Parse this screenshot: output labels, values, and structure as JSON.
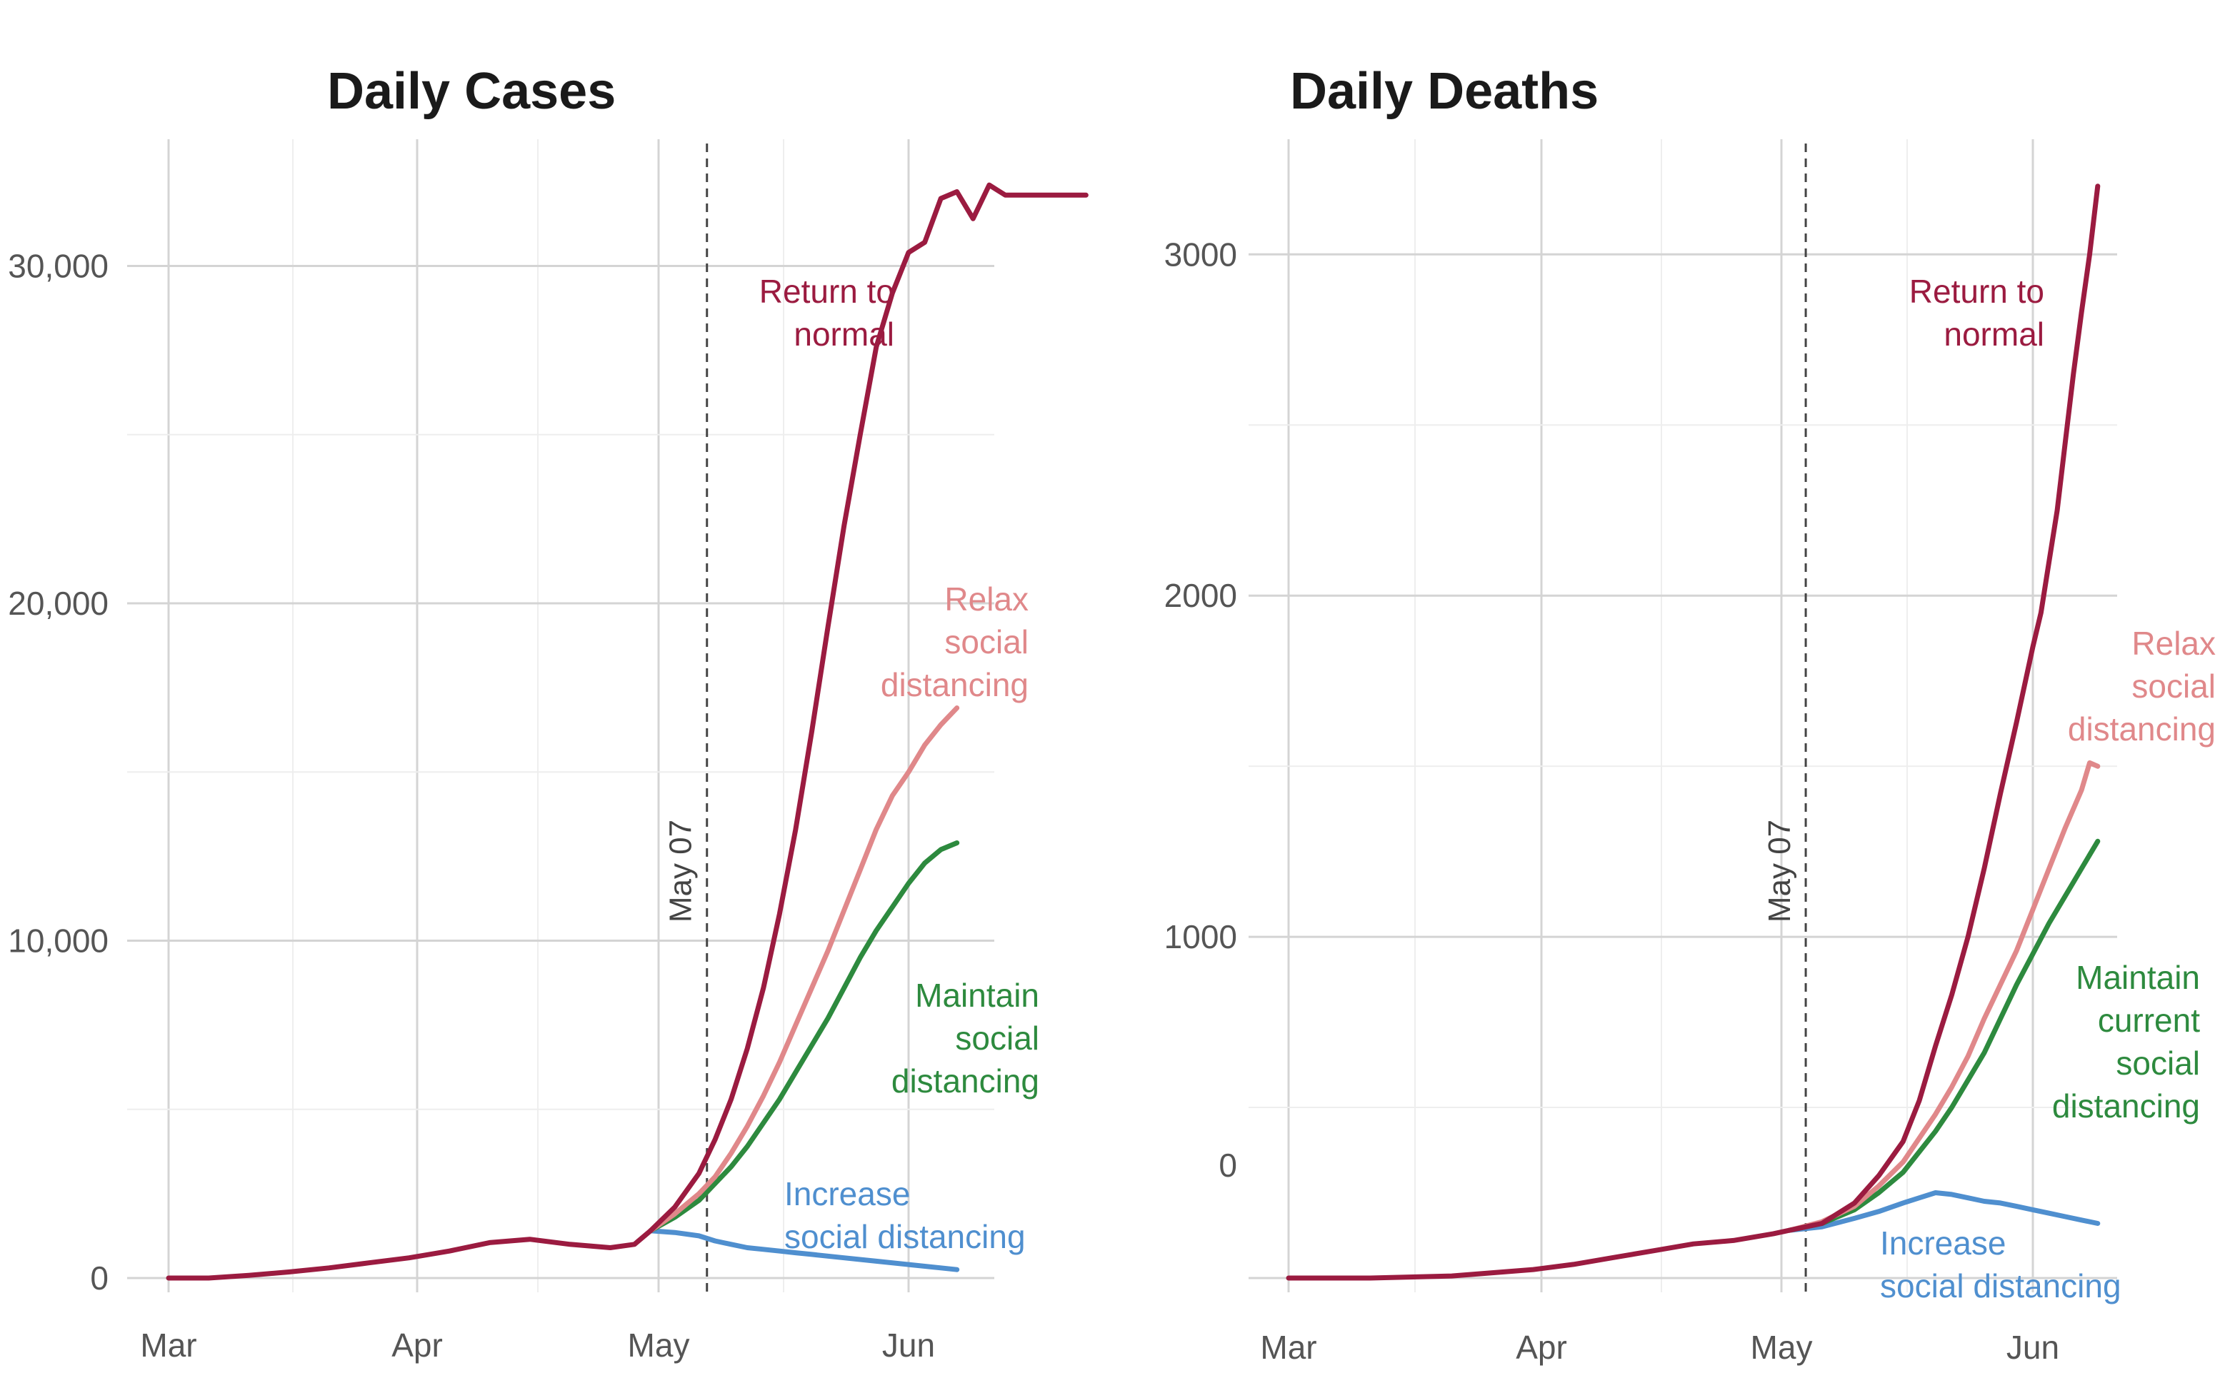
{
  "chart_data": [
    {
      "type": "line",
      "title": "Daily Cases",
      "xlabel": "",
      "ylabel": "",
      "ylim": [
        -200,
        33500
      ],
      "x_ticks": [
        "Mar",
        "Apr",
        "May",
        "Jun"
      ],
      "y_ticks": [
        {
          "value": 0,
          "label": "0"
        },
        {
          "value": 10000,
          "label": "10,000"
        },
        {
          "value": 20000,
          "label": "20,000"
        },
        {
          "value": 30000,
          "label": "30,000"
        }
      ],
      "marker": {
        "date": "May 07",
        "label": "May 07"
      },
      "x_unit": "days since Mar 1",
      "series": [
        {
          "name": "Return to normal",
          "label_lines": [
            "Return to",
            "normal"
          ],
          "color": "#9b1b40",
          "x": [
            0,
            5,
            10,
            15,
            20,
            25,
            30,
            35,
            40,
            45,
            50,
            55,
            58,
            60,
            63,
            66,
            68,
            70,
            72,
            74,
            76,
            78,
            80,
            82,
            84,
            86,
            88,
            90,
            92,
            94,
            96,
            98,
            100,
            102,
            104,
            106,
            108,
            110,
            112,
            113,
            114
          ],
          "values": [
            0,
            0,
            80,
            180,
            300,
            450,
            600,
            800,
            1050,
            1150,
            1000,
            900,
            1000,
            1400,
            2100,
            3100,
            4100,
            5300,
            6800,
            8600,
            10800,
            13300,
            16200,
            19300,
            22300,
            25000,
            27600,
            29200,
            30400,
            30700,
            32000,
            32200,
            31400,
            32400,
            32100,
            32100,
            32100,
            32100,
            32100,
            32100,
            32100
          ]
        },
        {
          "name": "Relax social distancing",
          "label_lines": [
            "Relax",
            "social",
            "distancing"
          ],
          "color": "#e0888a",
          "x": [
            60,
            63,
            66,
            68,
            70,
            72,
            74,
            76,
            78,
            80,
            82,
            84,
            86,
            88,
            90,
            92,
            94,
            96,
            98
          ],
          "values": [
            1400,
            1900,
            2500,
            3000,
            3700,
            4500,
            5400,
            6400,
            7500,
            8600,
            9700,
            10900,
            12100,
            13300,
            14300,
            15000,
            15800,
            16400,
            16900
          ]
        },
        {
          "name": "Maintain social distancing",
          "label_lines": [
            "Maintain",
            "social",
            "distancing"
          ],
          "color": "#2d8a3e",
          "x": [
            60,
            63,
            66,
            68,
            70,
            72,
            74,
            76,
            78,
            80,
            82,
            84,
            86,
            88,
            90,
            92,
            94,
            96,
            98
          ],
          "values": [
            1400,
            1800,
            2300,
            2800,
            3300,
            3900,
            4600,
            5300,
            6100,
            6900,
            7700,
            8600,
            9500,
            10300,
            11000,
            11700,
            12300,
            12700,
            12900
          ]
        },
        {
          "name": "Increase social distancing",
          "label_lines": [
            "Increase",
            "social distancing"
          ],
          "color": "#4f8fcf",
          "x": [
            60,
            63,
            66,
            68,
            70,
            72,
            74,
            76,
            78,
            80,
            84,
            88,
            92,
            96,
            98
          ],
          "values": [
            1400,
            1350,
            1250,
            1100,
            1000,
            900,
            850,
            800,
            750,
            700,
            600,
            500,
            400,
            300,
            250
          ]
        }
      ]
    },
    {
      "type": "line",
      "title": "Daily Deaths",
      "xlabel": "",
      "ylabel": "",
      "ylim": [
        -25,
        3350
      ],
      "x_ticks": [
        "Mar",
        "Apr",
        "May",
        "Jun"
      ],
      "y_ticks": [
        {
          "value": 0,
          "label": "0"
        },
        {
          "value": 1000,
          "label": "1000"
        },
        {
          "value": 2000,
          "label": "2000"
        },
        {
          "value": 3000,
          "label": "3000"
        }
      ],
      "marker": {
        "date": "May 07",
        "label": "May 07"
      },
      "x_unit": "days since Mar 1",
      "series": [
        {
          "name": "Return to normal",
          "label_lines": [
            "Return to",
            "normal"
          ],
          "color": "#9b1b40",
          "x": [
            0,
            10,
            20,
            30,
            35,
            40,
            45,
            50,
            55,
            60,
            62,
            66,
            70,
            73,
            76,
            78,
            80,
            82,
            84,
            86,
            88,
            90,
            92,
            93,
            94,
            95,
            96,
            97,
            98,
            99,
            100
          ],
          "values": [
            0,
            0,
            6,
            25,
            40,
            60,
            80,
            100,
            110,
            130,
            140,
            160,
            220,
            300,
            400,
            520,
            680,
            830,
            1000,
            1200,
            1420,
            1630,
            1850,
            1950,
            2100,
            2250,
            2450,
            2650,
            2830,
            3000,
            3200
          ]
        },
        {
          "name": "Relax social distancing",
          "label_lines": [
            "Relax",
            "social",
            "distancing"
          ],
          "color": "#e0888a",
          "x": [
            62,
            66,
            70,
            73,
            76,
            78,
            80,
            82,
            84,
            86,
            88,
            90,
            92,
            94,
            96,
            98,
            99,
            100
          ],
          "values": [
            140,
            165,
            210,
            270,
            340,
            410,
            480,
            560,
            650,
            760,
            860,
            960,
            1080,
            1200,
            1320,
            1430,
            1510,
            1500
          ]
        },
        {
          "name": "Maintain current social distancing",
          "label_lines": [
            "Maintain",
            "current",
            "social",
            "distancing"
          ],
          "color": "#2d8a3e",
          "x": [
            62,
            66,
            70,
            73,
            76,
            78,
            80,
            82,
            84,
            86,
            88,
            90,
            92,
            94,
            96,
            98,
            100
          ],
          "values": [
            140,
            160,
            200,
            250,
            310,
            370,
            430,
            500,
            580,
            660,
            760,
            860,
            950,
            1040,
            1120,
            1200,
            1280
          ]
        },
        {
          "name": "Increase social distancing",
          "label_lines": [
            "Increase",
            "social distancing"
          ],
          "color": "#4f8fcf",
          "x": [
            62,
            66,
            70,
            73,
            76,
            78,
            80,
            82,
            84,
            86,
            88,
            90,
            92,
            94,
            96,
            98,
            100
          ],
          "values": [
            140,
            150,
            175,
            195,
            220,
            235,
            250,
            245,
            235,
            225,
            220,
            210,
            200,
            190,
            180,
            170,
            160
          ]
        }
      ]
    }
  ]
}
